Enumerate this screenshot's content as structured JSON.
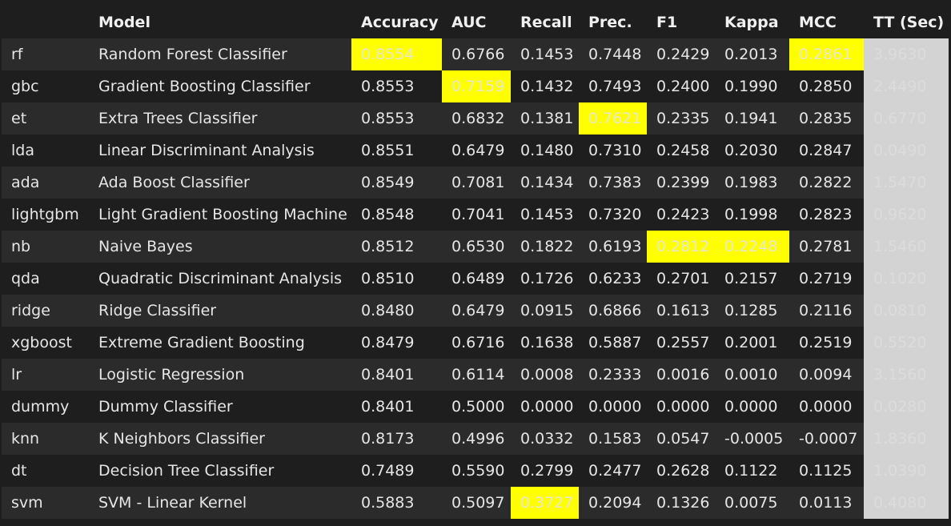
{
  "table": {
    "columns": [
      "",
      "Model",
      "Accuracy",
      "AUC",
      "Recall",
      "Prec.",
      "F1",
      "Kappa",
      "MCC",
      "TT (Sec)"
    ],
    "rows": [
      {
        "id": "rf",
        "model": "Random Forest Classifier",
        "accuracy": "0.8554",
        "auc": "0.6766",
        "recall": "0.1453",
        "prec": "0.7448",
        "f1": "0.2429",
        "kappa": "0.2013",
        "mcc": "0.2861",
        "tt": "3.9630"
      },
      {
        "id": "gbc",
        "model": "Gradient Boosting Classifier",
        "accuracy": "0.8553",
        "auc": "0.7159",
        "recall": "0.1432",
        "prec": "0.7493",
        "f1": "0.2400",
        "kappa": "0.1990",
        "mcc": "0.2850",
        "tt": "2.4490"
      },
      {
        "id": "et",
        "model": "Extra Trees Classifier",
        "accuracy": "0.8553",
        "auc": "0.6832",
        "recall": "0.1381",
        "prec": "0.7621",
        "f1": "0.2335",
        "kappa": "0.1941",
        "mcc": "0.2835",
        "tt": "0.6770"
      },
      {
        "id": "lda",
        "model": "Linear Discriminant Analysis",
        "accuracy": "0.8551",
        "auc": "0.6479",
        "recall": "0.1480",
        "prec": "0.7310",
        "f1": "0.2458",
        "kappa": "0.2030",
        "mcc": "0.2847",
        "tt": "0.0490"
      },
      {
        "id": "ada",
        "model": "Ada Boost Classifier",
        "accuracy": "0.8549",
        "auc": "0.7081",
        "recall": "0.1434",
        "prec": "0.7383",
        "f1": "0.2399",
        "kappa": "0.1983",
        "mcc": "0.2822",
        "tt": "1.5470"
      },
      {
        "id": "lightgbm",
        "model": "Light Gradient Boosting Machine",
        "accuracy": "0.8548",
        "auc": "0.7041",
        "recall": "0.1453",
        "prec": "0.7320",
        "f1": "0.2423",
        "kappa": "0.1998",
        "mcc": "0.2823",
        "tt": "0.9620"
      },
      {
        "id": "nb",
        "model": "Naive Bayes",
        "accuracy": "0.8512",
        "auc": "0.6530",
        "recall": "0.1822",
        "prec": "0.6193",
        "f1": "0.2812",
        "kappa": "0.2248",
        "mcc": "0.2781",
        "tt": "1.5460"
      },
      {
        "id": "qda",
        "model": "Quadratic Discriminant Analysis",
        "accuracy": "0.8510",
        "auc": "0.6489",
        "recall": "0.1726",
        "prec": "0.6233",
        "f1": "0.2701",
        "kappa": "0.2157",
        "mcc": "0.2719",
        "tt": "0.1020"
      },
      {
        "id": "ridge",
        "model": "Ridge Classifier",
        "accuracy": "0.8480",
        "auc": "0.6479",
        "recall": "0.0915",
        "prec": "0.6866",
        "f1": "0.1613",
        "kappa": "0.1285",
        "mcc": "0.2116",
        "tt": "0.0810"
      },
      {
        "id": "xgboost",
        "model": "Extreme Gradient Boosting",
        "accuracy": "0.8479",
        "auc": "0.6716",
        "recall": "0.1638",
        "prec": "0.5887",
        "f1": "0.2557",
        "kappa": "0.2001",
        "mcc": "0.2519",
        "tt": "0.5520"
      },
      {
        "id": "lr",
        "model": "Logistic Regression",
        "accuracy": "0.8401",
        "auc": "0.6114",
        "recall": "0.0008",
        "prec": "0.2333",
        "f1": "0.0016",
        "kappa": "0.0010",
        "mcc": "0.0094",
        "tt": "3.1560"
      },
      {
        "id": "dummy",
        "model": "Dummy Classifier",
        "accuracy": "0.8401",
        "auc": "0.5000",
        "recall": "0.0000",
        "prec": "0.0000",
        "f1": "0.0000",
        "kappa": "0.0000",
        "mcc": "0.0000",
        "tt": "0.0280"
      },
      {
        "id": "knn",
        "model": "K Neighbors Classifier",
        "accuracy": "0.8173",
        "auc": "0.4996",
        "recall": "0.0332",
        "prec": "0.1583",
        "f1": "0.0547",
        "kappa": "-0.0005",
        "mcc": "-0.0007",
        "tt": "1.8360"
      },
      {
        "id": "dt",
        "model": "Decision Tree Classifier",
        "accuracy": "0.7489",
        "auc": "0.5590",
        "recall": "0.2799",
        "prec": "0.2477",
        "f1": "0.2628",
        "kappa": "0.1122",
        "mcc": "0.1125",
        "tt": "1.0390"
      },
      {
        "id": "svm",
        "model": "SVM - Linear Kernel",
        "accuracy": "0.5883",
        "auc": "0.5097",
        "recall": "0.3727",
        "prec": "0.2094",
        "f1": "0.1326",
        "kappa": "0.0075",
        "mcc": "0.0113",
        "tt": "0.4080"
      }
    ],
    "highlights": {
      "accuracy": "rf",
      "auc": "gbc",
      "recall": "svm",
      "prec": "et",
      "f1": "nb",
      "kappa": "nb",
      "mcc": "rf"
    },
    "colors": {
      "highlight": "#ffff00",
      "tt_column": "#d3d3d3",
      "row_odd": "#2b2b2b",
      "row_even": "#1e1e1e"
    }
  }
}
